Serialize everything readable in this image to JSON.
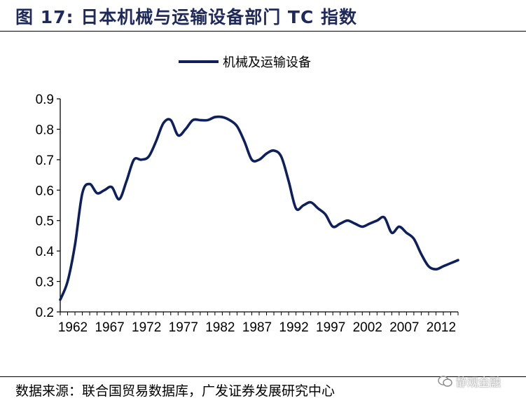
{
  "figure": {
    "title": "图 17:  日本机械与运输设备部门 TC 指数",
    "source": "数据来源：联合国贸易数据库，广发证券发展研究中心",
    "watermark": "静观金融",
    "watermark_icon": "wechat-icon"
  },
  "chart_data": {
    "type": "line",
    "title": "",
    "xlabel": "",
    "ylabel": "",
    "ylim": [
      0.2,
      0.9
    ],
    "yticks": [
      "0.2",
      "0.3",
      "0.4",
      "0.5",
      "0.6",
      "0.7",
      "0.8",
      "0.9"
    ],
    "xlim": [
      1962,
      2016
    ],
    "xticks": [
      "1962",
      "1967",
      "1972",
      "1977",
      "1982",
      "1987",
      "1992",
      "1997",
      "2002",
      "2007",
      "2012"
    ],
    "grid": false,
    "legend_position": "top-center",
    "series": [
      {
        "name": "机械及运输设备",
        "color": "#0d1f5c",
        "x": [
          1962,
          1963,
          1964,
          1965,
          1966,
          1967,
          1968,
          1969,
          1970,
          1971,
          1972,
          1973,
          1974,
          1975,
          1976,
          1977,
          1978,
          1979,
          1980,
          1981,
          1982,
          1983,
          1984,
          1985,
          1986,
          1987,
          1988,
          1989,
          1990,
          1991,
          1992,
          1993,
          1994,
          1995,
          1996,
          1997,
          1998,
          1999,
          2000,
          2001,
          2002,
          2003,
          2004,
          2005,
          2006,
          2007,
          2008,
          2009,
          2010,
          2011,
          2012,
          2013,
          2014,
          2015,
          2016
        ],
        "y": [
          0.24,
          0.3,
          0.42,
          0.59,
          0.62,
          0.59,
          0.6,
          0.61,
          0.57,
          0.63,
          0.7,
          0.7,
          0.71,
          0.76,
          0.82,
          0.83,
          0.78,
          0.8,
          0.83,
          0.83,
          0.83,
          0.84,
          0.84,
          0.83,
          0.81,
          0.76,
          0.7,
          0.7,
          0.72,
          0.73,
          0.71,
          0.63,
          0.54,
          0.55,
          0.56,
          0.54,
          0.52,
          0.48,
          0.49,
          0.5,
          0.49,
          0.48,
          0.49,
          0.5,
          0.51,
          0.46,
          0.48,
          0.46,
          0.44,
          0.39,
          0.35,
          0.34,
          0.35,
          0.36,
          0.37
        ]
      }
    ]
  }
}
